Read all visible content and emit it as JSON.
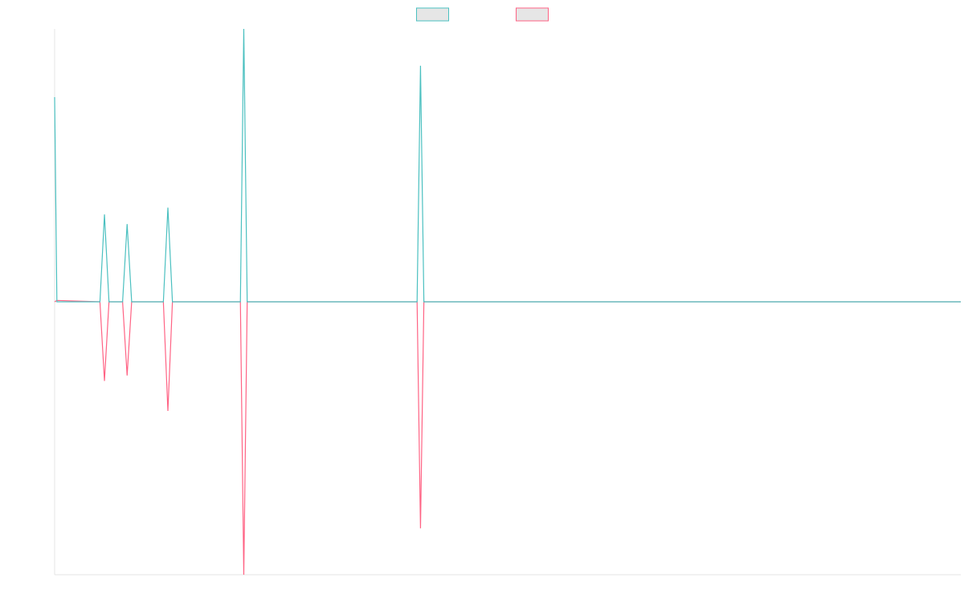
{
  "chart_data": {
    "type": "line",
    "title": "",
    "xlabel": "",
    "ylabel": "",
    "legend": {
      "placement": "top-center",
      "entries": [
        {
          "series_index": 0,
          "label": ""
        },
        {
          "series_index": 1,
          "label": ""
        }
      ]
    },
    "grid": false,
    "xlim": [
      0,
      400
    ],
    "ylim": [
      -1.0,
      1.0
    ],
    "series": [
      {
        "color": "#4bc0c0",
        "fill": "#e6e6e6",
        "points": [
          [
            0,
            0.75
          ],
          [
            1,
            0
          ],
          [
            20,
            0
          ],
          [
            22,
            0.32
          ],
          [
            24,
            0
          ],
          [
            30,
            0
          ],
          [
            32,
            0.285
          ],
          [
            34,
            0
          ],
          [
            48,
            0
          ],
          [
            50,
            0.345
          ],
          [
            52,
            0
          ],
          [
            82,
            0
          ],
          [
            83.5,
            1.0
          ],
          [
            85,
            0
          ],
          [
            160,
            0
          ],
          [
            161.5,
            0.865
          ],
          [
            163,
            0
          ],
          [
            400,
            0
          ]
        ]
      },
      {
        "color": "#ff6384",
        "fill": "#e6e6e6",
        "points": [
          [
            0,
            0
          ],
          [
            1,
            0.005
          ],
          [
            20,
            0
          ],
          [
            22,
            -0.29
          ],
          [
            24,
            0
          ],
          [
            30,
            0
          ],
          [
            32,
            -0.27
          ],
          [
            34,
            0
          ],
          [
            48,
            0
          ],
          [
            50,
            -0.4
          ],
          [
            52,
            0
          ],
          [
            82,
            0
          ],
          [
            83.5,
            -1.0
          ],
          [
            85,
            0
          ],
          [
            160,
            0
          ],
          [
            161.5,
            -0.83
          ],
          [
            163,
            0
          ],
          [
            400,
            0
          ]
        ]
      }
    ]
  }
}
